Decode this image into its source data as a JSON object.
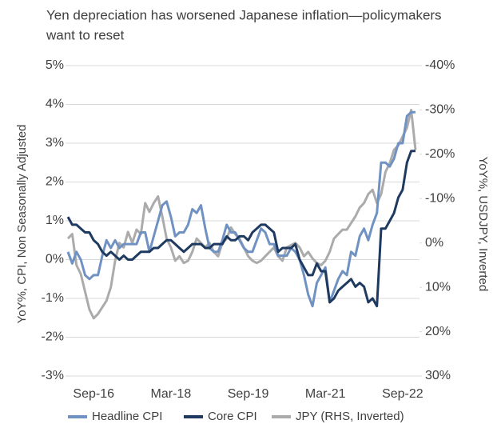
{
  "chart_data": {
    "type": "line",
    "title": [
      "Yen depreciation has worsened Japanese inflation—policymakers",
      "want to reset"
    ],
    "y_label": "YoY%, CPI, Non Seasonally Adjusted",
    "y2_label": "YoY%, USDJPY, Inverted",
    "categories": [
      null,
      null,
      null,
      null,
      null,
      null,
      "Sep-16",
      null,
      null,
      null,
      null,
      null,
      null,
      null,
      null,
      null,
      null,
      null,
      null,
      null,
      null,
      null,
      null,
      null,
      "Mar-18",
      null,
      null,
      null,
      null,
      null,
      null,
      null,
      null,
      null,
      null,
      null,
      null,
      null,
      null,
      null,
      null,
      null,
      "Sep-19",
      null,
      null,
      null,
      null,
      null,
      null,
      null,
      null,
      null,
      null,
      null,
      null,
      null,
      null,
      null,
      null,
      null,
      "Mar-21",
      null,
      null,
      null,
      null,
      null,
      null,
      null,
      null,
      null,
      null,
      null,
      null,
      null,
      null,
      null,
      null,
      null,
      "Sep-22",
      null,
      null,
      null
    ],
    "ylim": [
      -3,
      5
    ],
    "yticks": [
      {
        "value": -3,
        "label": "-3%"
      },
      {
        "value": -2,
        "label": "-2%"
      },
      {
        "value": -1,
        "label": "-1%"
      },
      {
        "value": 0,
        "label": "0%"
      },
      {
        "value": 1,
        "label": "1%"
      },
      {
        "value": 2,
        "label": "2%"
      },
      {
        "value": 3,
        "label": "3%"
      },
      {
        "value": 4,
        "label": "4%"
      },
      {
        "value": 5,
        "label": "5%"
      }
    ],
    "y2lim": [
      -40,
      30
    ],
    "y2_inverted": true,
    "y2ticks": [
      {
        "value": -40,
        "label": "-40%"
      },
      {
        "value": -30,
        "label": "-30%"
      },
      {
        "value": -20,
        "label": "-20%"
      },
      {
        "value": -10,
        "label": "-10%"
      },
      {
        "value": 0,
        "label": "0%"
      },
      {
        "value": 10,
        "label": "10%"
      },
      {
        "value": 20,
        "label": "20%"
      },
      {
        "value": 30,
        "label": "30%"
      }
    ],
    "grid": true,
    "legend": "bottom",
    "series": [
      {
        "name": "Headline CPI",
        "color": "#7092c2",
        "values": [
          0.2,
          -0.1,
          0.2,
          0.0,
          -0.4,
          -0.5,
          -0.4,
          -0.4,
          0.1,
          0.5,
          0.3,
          0.5,
          0.3,
          0.4,
          0.4,
          0.4,
          0.4,
          0.7,
          0.7,
          0.2,
          0.6,
          1.0,
          1.4,
          1.5,
          1.1,
          0.6,
          0.7,
          0.7,
          0.9,
          1.3,
          1.2,
          1.4,
          0.8,
          0.3,
          0.2,
          0.2,
          0.5,
          0.9,
          0.7,
          0.7,
          0.5,
          0.3,
          0.2,
          0.2,
          0.5,
          0.8,
          0.7,
          0.4,
          0.4,
          0.1,
          0.1,
          0.1,
          0.3,
          0.2,
          0.0,
          -0.4,
          -0.9,
          -1.2,
          -0.6,
          -0.4,
          -0.2,
          -1.1,
          -0.8,
          -0.5,
          -0.3,
          -0.4,
          0.2,
          0.1,
          0.6,
          0.8,
          0.5,
          0.9,
          1.2,
          2.5,
          2.5,
          2.4,
          2.6,
          3.0,
          3.0,
          3.7,
          3.8,
          3.8
        ]
      },
      {
        "name": "Core CPI",
        "color": "#1f3a60",
        "values": [
          1.1,
          0.9,
          0.9,
          0.8,
          0.7,
          0.7,
          0.5,
          0.4,
          0.2,
          0.1,
          0.2,
          0.1,
          0.0,
          0.1,
          0.0,
          0.0,
          0.1,
          0.2,
          0.2,
          0.2,
          0.3,
          0.3,
          0.4,
          0.5,
          0.5,
          0.4,
          0.3,
          0.2,
          0.3,
          0.4,
          0.4,
          0.4,
          0.3,
          0.3,
          0.4,
          0.4,
          0.4,
          0.6,
          0.5,
          0.5,
          0.6,
          0.6,
          0.5,
          0.7,
          0.8,
          0.9,
          0.9,
          0.8,
          0.7,
          0.2,
          0.3,
          0.3,
          0.3,
          0.4,
          0.0,
          -0.2,
          -0.4,
          -0.4,
          -0.1,
          -0.3,
          -0.3,
          -1.1,
          -1.0,
          -0.8,
          -0.7,
          -0.6,
          -0.5,
          -0.7,
          -0.6,
          -0.7,
          -1.1,
          -1.0,
          -1.2,
          0.8,
          0.8,
          1.0,
          1.2,
          1.6,
          1.8,
          2.5,
          2.8,
          2.8
        ]
      },
      {
        "name": "JPY (RHS, Inverted)",
        "color": "#ababab",
        "axis": "y2",
        "values": [
          -1,
          -2,
          5,
          7,
          11,
          15,
          17,
          16,
          14.5,
          13,
          10,
          4,
          0,
          1,
          -2.5,
          0,
          -3,
          -2,
          -9,
          -7,
          -9,
          -10.5,
          -6,
          -1,
          1,
          4,
          3,
          4.5,
          4,
          2,
          -1,
          0,
          1,
          0,
          2,
          3,
          0,
          -1,
          -3.5,
          -2,
          -1,
          1,
          3,
          4,
          4.5,
          4,
          3,
          2,
          1,
          3,
          4,
          1,
          0.5,
          0,
          1,
          3,
          2,
          3.5,
          4.5,
          5,
          4,
          2,
          -1,
          -2,
          -3,
          -3,
          -4.5,
          -6,
          -8,
          -9,
          -11,
          -12,
          -9,
          -11,
          -16,
          -18,
          -21,
          -22,
          -24,
          -26,
          -30,
          -21
        ]
      }
    ]
  }
}
